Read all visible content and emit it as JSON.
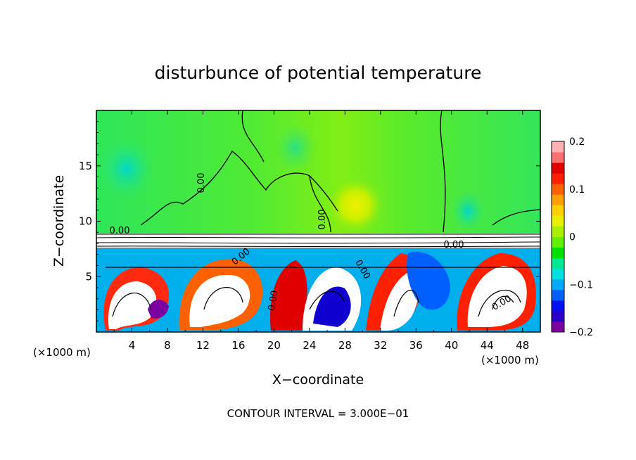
{
  "chart_data": {
    "type": "heatmap",
    "title": "disturbunce of potential temperature",
    "xlabel": "X−coordinate",
    "ylabel": "Z−coordinate",
    "x_unit_left": "(×1000 m)",
    "x_unit_right": "(×1000 m)",
    "footer": "CONTOUR INTERVAL = 3.000E−01",
    "xlim": [
      0,
      50
    ],
    "ylim": [
      0,
      20
    ],
    "x_ticks": [
      4,
      8,
      12,
      16,
      20,
      24,
      28,
      32,
      36,
      40,
      44,
      48
    ],
    "y_ticks": [
      5,
      10,
      15
    ],
    "colorbar": {
      "range": [
        -0.2,
        0.2
      ],
      "tick_values": [
        0.2,
        0.1,
        0,
        -0.1,
        -0.2
      ],
      "tick_labels": [
        "0.2",
        "0.1",
        "0",
        "−0.1",
        "−0.2"
      ],
      "colors": [
        "#7a00a0",
        "#2a00c8",
        "#0010f0",
        "#0060ff",
        "#00a8ff",
        "#00e0e0",
        "#00e890",
        "#00e000",
        "#60f000",
        "#a8f000",
        "#e8f000",
        "#ffd000",
        "#ffa000",
        "#ff6000",
        "#ff2000",
        "#e00000",
        "#ff7070",
        "#ffb0b0"
      ]
    },
    "contour_labels": [
      "0.00",
      "0.00",
      "0.00",
      "0.00",
      "0.00",
      "0.00",
      "0.00",
      "0.00"
    ],
    "layers": {
      "upper": {
        "z_range": [
          9,
          20
        ],
        "base_color": "#6aec1e",
        "note": "near-zero disturbance"
      },
      "band": {
        "z_range": [
          7.6,
          9
        ],
        "color": "#ffffff"
      },
      "lower": {
        "z_range": [
          0,
          7.6
        ],
        "note": "strong eddy disturbances"
      }
    }
  }
}
